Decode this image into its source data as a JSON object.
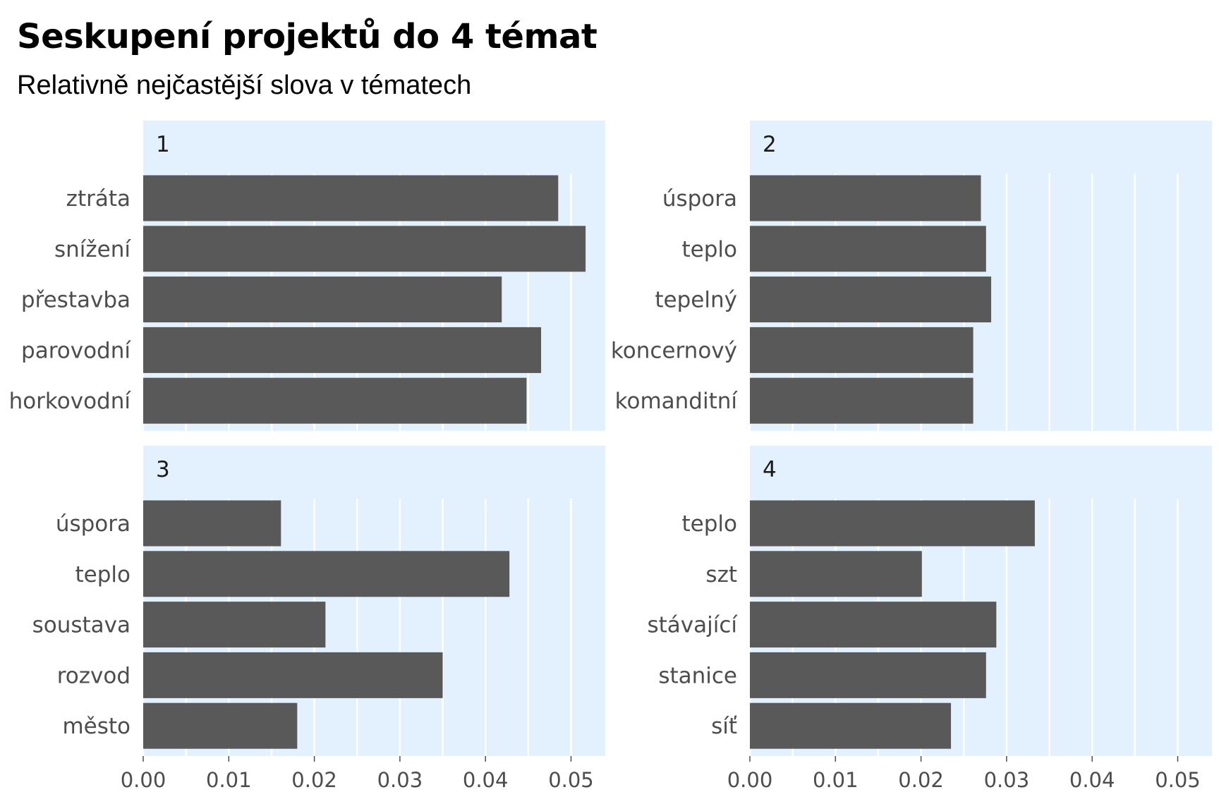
{
  "title": "Seskupení projektů do 4 témat",
  "subtitle": "Relativně nejčastější slova v tématech",
  "colors": {
    "panel_background": "#e3f0fd",
    "bar": "#595959",
    "gridline": "#ffffff"
  },
  "chart_data": {
    "type": "bar",
    "orientation": "horizontal",
    "title": "Seskupení projektů do 4 témat",
    "subtitle": "Relativně nejčastější slova v tématech",
    "xlim": [
      0,
      0.054
    ],
    "x_ticks": [
      0,
      0.01,
      0.02,
      0.03,
      0.04,
      0.05
    ],
    "x_tick_labels": [
      "0.00",
      "0.01",
      "0.02",
      "0.03",
      "0.04",
      "0.05"
    ],
    "grid": true,
    "facets": [
      {
        "label": "1",
        "categories": [
          "ztráta",
          "snížení",
          "přestavba",
          "parovodní",
          "horkovodní"
        ],
        "values": [
          0.0485,
          0.0517,
          0.0419,
          0.0465,
          0.0448
        ]
      },
      {
        "label": "2",
        "categories": [
          "úspora",
          "teplo",
          "tepelný",
          "koncernový",
          "komanditní"
        ],
        "values": [
          0.027,
          0.0276,
          0.0282,
          0.0261,
          0.0261
        ]
      },
      {
        "label": "3",
        "categories": [
          "úspora",
          "teplo",
          "soustava",
          "rozvod",
          "město"
        ],
        "values": [
          0.0161,
          0.0428,
          0.0213,
          0.035,
          0.018
        ]
      },
      {
        "label": "4",
        "categories": [
          "teplo",
          "szt",
          "stávající",
          "stanice",
          "síť"
        ],
        "values": [
          0.0333,
          0.0201,
          0.0288,
          0.0276,
          0.0235
        ]
      }
    ]
  }
}
